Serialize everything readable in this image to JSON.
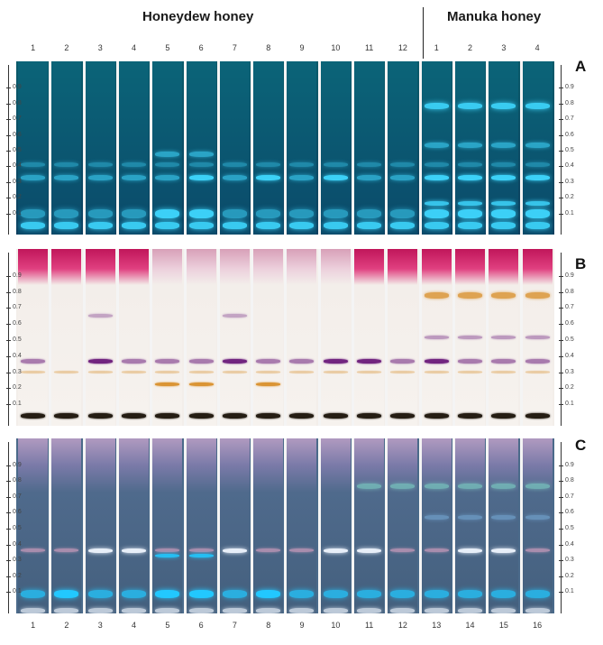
{
  "headers": {
    "honeydew": "Honeydew honey",
    "manuka": "Manuka honey"
  },
  "top_lane_labels": [
    "1",
    "2",
    "3",
    "4",
    "5",
    "6",
    "7",
    "8",
    "9",
    "10",
    "11",
    "12",
    "1",
    "2",
    "3",
    "4"
  ],
  "bottom_lane_labels": [
    "1",
    "2",
    "3",
    "4",
    "5",
    "6",
    "7",
    "8",
    "9",
    "10",
    "11",
    "12",
    "13",
    "14",
    "15",
    "16"
  ],
  "panel_letters": [
    "A",
    "B",
    "C"
  ],
  "scale_ticks": [
    "0.1",
    "0.2",
    "0.3",
    "0.4",
    "0.5",
    "0.6",
    "0.7",
    "0.8",
    "0.9"
  ],
  "colors": {
    "panel_a_bg": "#0c4a5a",
    "panel_b_bg": "#f1ebe6",
    "panel_c_bg": "#4a6a8a",
    "band_a": "#3fd8ff",
    "band_b_purple": "#6a1a7a",
    "band_b_orange": "#d88a20",
    "band_b_solvent": "#c0165a",
    "band_c_white": "#f0f6ff",
    "band_c_cyan": "#22c8ff"
  }
}
